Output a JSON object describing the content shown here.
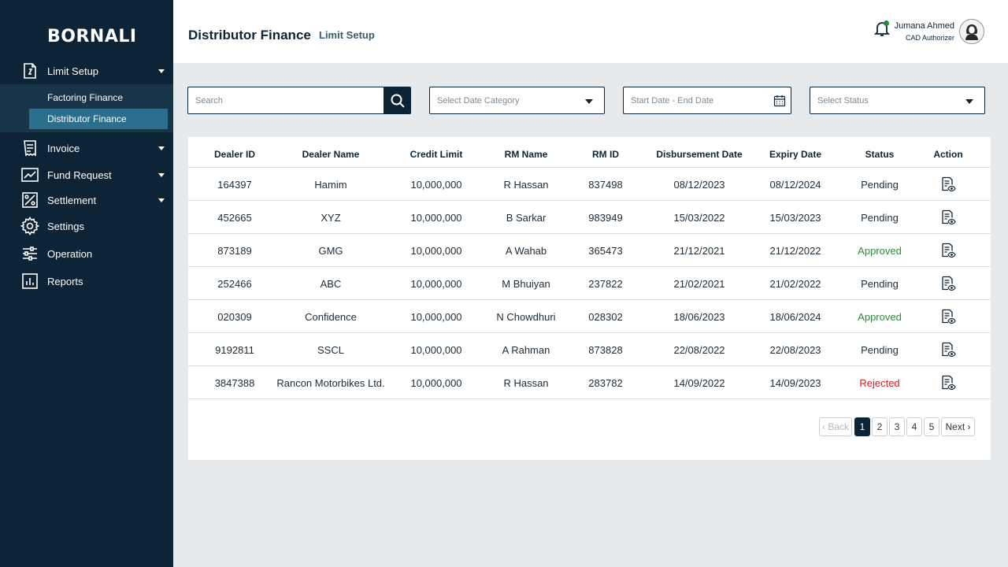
{
  "brand": "BORNALI",
  "sidebar": {
    "items": [
      {
        "label": "Limit Setup",
        "icon": "document-icon"
      },
      {
        "label": "Invoice",
        "icon": "receipt-icon"
      },
      {
        "label": "Fund Request",
        "icon": "chart-icon"
      },
      {
        "label": "Settlement",
        "icon": "percent-icon"
      },
      {
        "label": "Settings",
        "icon": "gear-icon"
      },
      {
        "label": "Operation",
        "icon": "sliders-icon"
      },
      {
        "label": "Reports",
        "icon": "report-icon"
      }
    ],
    "sub_items": [
      "Factoring Finance",
      "Distributor Finance"
    ]
  },
  "header": {
    "title": "Distributor Finance",
    "subtitle": "Limit Setup",
    "user_name": "Jumana Ahmed",
    "user_role": "CAD Authorizer"
  },
  "filters": {
    "search_placeholder": "Search",
    "date_category": "Select Date Category",
    "date_range": "Start Date - End Date",
    "status": "Select Status"
  },
  "table": {
    "columns": [
      "Dealer ID",
      "Dealer Name",
      "Credit Limit",
      "RM Name",
      "RM ID",
      "Disbursement Date",
      "Expiry Date",
      "Status",
      "Action"
    ],
    "rows": [
      [
        "164397",
        "Hamim",
        "10,000,000",
        "R Hassan",
        "837498",
        "08/12/2023",
        "08/12/2024",
        "Pending"
      ],
      [
        "452665",
        "XYZ",
        "10,000,000",
        "B Sarkar",
        "983949",
        "15/03/2022",
        "15/03/2023",
        "Pending"
      ],
      [
        "873189",
        "GMG",
        "10,000,000",
        "A Wahab",
        "365473",
        "21/12/2021",
        "21/12/2022",
        "Approved"
      ],
      [
        "252466",
        "ABC",
        "10,000,000",
        "M Bhuiyan",
        "237822",
        "21/02/2021",
        "21/02/2022",
        "Pending"
      ],
      [
        "020309",
        "Confidence",
        "10,000,000",
        "N Chowdhuri",
        "028302",
        "18/06/2023",
        "18/06/2024",
        "Approved"
      ],
      [
        "9192811",
        "SSCL",
        "10,000,000",
        "A Rahman",
        "873828",
        "22/08/2022",
        "22/08/2023",
        "Pending"
      ],
      [
        "3847388",
        "Rancon Motorbikes Ltd.",
        "10,000,000",
        "R Hassan",
        "283782",
        "14/09/2022",
        "14/09/2023",
        "Rejected"
      ]
    ]
  },
  "pagination": {
    "back": "‹ Back",
    "pages": [
      "1",
      "2",
      "3",
      "4",
      "5"
    ],
    "current": "1",
    "next": "Next ›"
  },
  "colors": {
    "sidebar_bg": "#0c2436",
    "selected_sub": "#2b6f8d",
    "approved": "#2e8b3a",
    "rejected": "#d62020"
  }
}
